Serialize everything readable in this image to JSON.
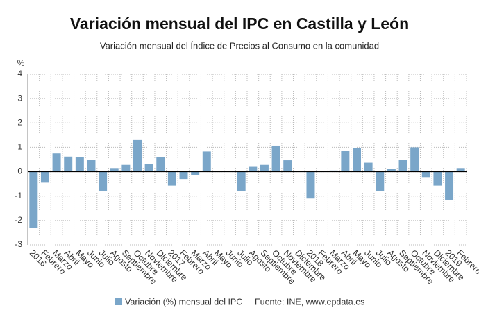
{
  "chart_data": {
    "type": "bar",
    "title": "Variación mensual del IPC en Castilla y León",
    "subtitle": "Variación mensual del Índice de Precios al Consumo en la comunidad",
    "y_label": "%",
    "source": "Fuente: INE, www.epdata.es",
    "categories": [
      "2016",
      "Febrero",
      "Marzo",
      "Abril",
      "Mayo",
      "Junio",
      "Julio",
      "Agosto",
      "Septiembre",
      "Octubre",
      "Noviembre",
      "Diciembre",
      "2017",
      "Febrero",
      "Marzo",
      "Abril",
      "Mayo",
      "Junio",
      "Julio",
      "Agosto",
      "Septiembre",
      "Octubre",
      "Noviembre",
      "Diciembre",
      "2018",
      "Febrero",
      "Marzo",
      "Abril",
      "Mayo",
      "Junio",
      "Julio",
      "Agosto",
      "Septiembre",
      "Octubre",
      "Noviembre",
      "Diciembre",
      "2019",
      "Febrero"
    ],
    "series": [
      {
        "name": "Variación (%) mensual del IPC",
        "color": "#7aa6c9",
        "values": [
          -2.3,
          -0.45,
          0.75,
          0.62,
          0.6,
          0.5,
          -0.78,
          0.15,
          0.28,
          1.3,
          0.32,
          0.6,
          -0.57,
          -0.3,
          -0.15,
          0.83,
          0.0,
          0.0,
          -0.8,
          0.2,
          0.28,
          1.07,
          0.47,
          0.0,
          -1.1,
          0.0,
          0.05,
          0.85,
          0.98,
          0.37,
          -0.8,
          0.13,
          0.48,
          1.0,
          -0.22,
          -0.57,
          -1.15,
          0.15
        ]
      }
    ],
    "ylim": [
      -3,
      4
    ],
    "yticks": [
      -3,
      -2,
      -1,
      0,
      1,
      2,
      3,
      4
    ],
    "grid": true
  }
}
